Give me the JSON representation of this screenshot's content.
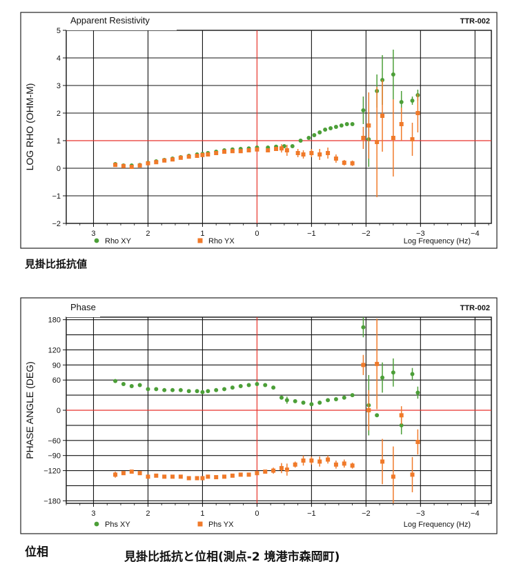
{
  "colors": {
    "xy": "#4c9f38",
    "yx": "#f07a2a",
    "ref": "#e8322a",
    "grid": "#111111"
  },
  "captions": {
    "resistivity": "見掛比抵抗値",
    "phase": "位相",
    "main": "見掛比抵抗と位相(測点-2 境港市森岡町)"
  },
  "chart_data": [
    {
      "type": "scatter",
      "title": "Apparent Resistivity",
      "tag": "TTR-002",
      "ylabel": "LOG RHO (OHM-M)",
      "xlabel": "Log Frequency (Hz)",
      "xlim": [
        3.5,
        -4.3
      ],
      "ylim": [
        -2,
        5
      ],
      "x_ticks": [
        3,
        2,
        1,
        0,
        -1,
        -2,
        -3,
        -4
      ],
      "x_tick_labels": [
        "3",
        "2",
        "1",
        "0",
        "−1",
        "−2",
        "−3",
        "−4"
      ],
      "y_ticks": [
        5,
        4,
        3,
        2,
        1,
        0,
        -1,
        -2
      ],
      "y_tick_labels": [
        "5",
        "4",
        "3",
        "2",
        "1",
        "0",
        "−1",
        "−2"
      ],
      "ref_x": 0,
      "ref_y": 1,
      "grid": true,
      "legend_position": "bottom",
      "series": [
        {
          "name": "Rho XY",
          "marker": "circle",
          "x": [
            2.6,
            2.45,
            2.3,
            2.15,
            2.0,
            1.85,
            1.7,
            1.55,
            1.4,
            1.25,
            1.1,
            1.0,
            0.9,
            0.75,
            0.6,
            0.45,
            0.3,
            0.15,
            0.0,
            -0.2,
            -0.35,
            -0.5,
            -0.65,
            -0.8,
            -0.95,
            -1.05,
            -1.15,
            -1.25,
            -1.35,
            -1.45,
            -1.55,
            -1.65,
            -1.75,
            -1.95,
            -2.05,
            -2.2,
            -2.3,
            -2.5,
            -2.65,
            -2.85,
            -2.95
          ],
          "y": [
            0.15,
            0.1,
            0.1,
            0.12,
            0.2,
            0.25,
            0.3,
            0.35,
            0.4,
            0.45,
            0.5,
            0.52,
            0.55,
            0.6,
            0.65,
            0.68,
            0.7,
            0.72,
            0.75,
            0.75,
            0.78,
            0.8,
            0.8,
            1.0,
            1.1,
            1.2,
            1.3,
            1.4,
            1.45,
            1.5,
            1.55,
            1.6,
            1.6,
            2.1,
            1.05,
            2.8,
            3.2,
            3.4,
            2.4,
            2.45,
            2.65
          ],
          "err": [
            0,
            0,
            0,
            0,
            0,
            0,
            0,
            0,
            0,
            0,
            0,
            0,
            0,
            0,
            0,
            0,
            0,
            0,
            0,
            0,
            0,
            0,
            0,
            0,
            0,
            0,
            0,
            0,
            0,
            0,
            0,
            0,
            0,
            0.5,
            1.0,
            0.6,
            0.9,
            0.9,
            0.4,
            0.15,
            0.2
          ]
        },
        {
          "name": "Rho YX",
          "marker": "square",
          "x": [
            2.6,
            2.45,
            2.3,
            2.15,
            2.0,
            1.85,
            1.7,
            1.55,
            1.4,
            1.25,
            1.1,
            1.0,
            0.9,
            0.75,
            0.6,
            0.45,
            0.3,
            0.15,
            0.0,
            -0.2,
            -0.35,
            -0.45,
            -0.55,
            -0.75,
            -0.85,
            -1.0,
            -1.15,
            -1.3,
            -1.45,
            -1.6,
            -1.75,
            -1.95,
            -2.05,
            -2.2,
            -2.3,
            -2.5,
            -2.65,
            -2.85,
            -2.95
          ],
          "y": [
            0.12,
            0.08,
            0.05,
            0.1,
            0.18,
            0.22,
            0.28,
            0.32,
            0.38,
            0.42,
            0.45,
            0.48,
            0.5,
            0.55,
            0.6,
            0.62,
            0.62,
            0.65,
            0.68,
            0.65,
            0.7,
            0.72,
            0.65,
            0.55,
            0.5,
            0.55,
            0.5,
            0.55,
            0.35,
            0.2,
            0.18,
            1.1,
            1.55,
            0.95,
            1.9,
            1.1,
            1.6,
            1.05,
            2.0
          ],
          "err": [
            0,
            0,
            0,
            0,
            0,
            0,
            0,
            0,
            0,
            0,
            0,
            0,
            0,
            0,
            0,
            0,
            0,
            0,
            0,
            0,
            0,
            0.15,
            0.2,
            0.15,
            0.15,
            0.15,
            0.2,
            0.2,
            0.15,
            0.1,
            0.1,
            0.4,
            1.2,
            2.0,
            1.3,
            1.4,
            0.6,
            0.6,
            0.7
          ]
        }
      ]
    },
    {
      "type": "scatter",
      "title": "Phase",
      "tag": "TTR-002",
      "ylabel": "PHASE ANGLE (DEG)",
      "xlabel": "Log Frequency (Hz)",
      "xlim": [
        3.5,
        -4.3
      ],
      "ylim": [
        -185,
        185
      ],
      "x_ticks": [
        3,
        2,
        1,
        0,
        -1,
        -2,
        -3,
        -4
      ],
      "x_tick_labels": [
        "3",
        "2",
        "1",
        "0",
        "−1",
        "−2",
        "−3",
        "−4"
      ],
      "y_ticks": [
        180,
        120,
        90,
        60,
        0,
        -60,
        -90,
        -120,
        -180
      ],
      "grid_y": [
        180,
        150,
        120,
        90,
        60,
        30,
        0,
        -30,
        -60,
        -90,
        -120,
        -150,
        -180
      ],
      "y_tick_labels": [
        "180",
        "120",
        "90",
        "60",
        "0",
        "−60",
        "−90",
        "−120",
        "−180"
      ],
      "ref_x": 0,
      "ref_y": 0,
      "grid": true,
      "legend_position": "bottom",
      "series": [
        {
          "name": "Phs XY",
          "marker": "circle",
          "x": [
            2.6,
            2.45,
            2.3,
            2.15,
            2.0,
            1.85,
            1.7,
            1.55,
            1.4,
            1.25,
            1.1,
            1.0,
            0.9,
            0.75,
            0.6,
            0.45,
            0.3,
            0.15,
            0.0,
            -0.15,
            -0.3,
            -0.45,
            -0.55,
            -0.7,
            -0.85,
            -1.0,
            -1.15,
            -1.3,
            -1.45,
            -1.6,
            -1.75,
            -1.95,
            -2.05,
            -2.2,
            -2.3,
            -2.5,
            -2.65,
            -2.85,
            -2.95
          ],
          "y": [
            58,
            52,
            48,
            50,
            42,
            42,
            40,
            40,
            40,
            38,
            38,
            36,
            38,
            40,
            42,
            45,
            48,
            50,
            52,
            50,
            45,
            25,
            20,
            18,
            15,
            12,
            15,
            20,
            22,
            25,
            30,
            165,
            10,
            -10,
            65,
            75,
            -30,
            72,
            35
          ],
          "err": [
            0,
            0,
            0,
            0,
            0,
            0,
            0,
            0,
            0,
            0,
            0,
            0,
            0,
            0,
            0,
            0,
            0,
            0,
            0,
            0,
            0,
            0,
            7,
            0,
            0,
            0,
            0,
            0,
            0,
            0,
            0,
            20,
            60,
            0,
            30,
            28,
            18,
            12,
            12
          ]
        },
        {
          "name": "Phs YX",
          "marker": "square",
          "x": [
            2.6,
            2.45,
            2.3,
            2.15,
            2.0,
            1.85,
            1.7,
            1.55,
            1.4,
            1.25,
            1.1,
            1.0,
            0.9,
            0.75,
            0.6,
            0.45,
            0.3,
            0.15,
            0.0,
            -0.15,
            -0.3,
            -0.45,
            -0.55,
            -0.7,
            -0.85,
            -1.0,
            -1.15,
            -1.3,
            -1.45,
            -1.6,
            -1.75,
            -1.95,
            -2.05,
            -2.2,
            -2.3,
            -2.5,
            -2.65,
            -2.85,
            -2.95
          ],
          "y": [
            -128,
            -125,
            -122,
            -125,
            -132,
            -130,
            -132,
            -132,
            -132,
            -135,
            -135,
            -135,
            -132,
            -133,
            -132,
            -130,
            -128,
            -128,
            -125,
            -122,
            -120,
            -115,
            -118,
            -108,
            -100,
            -100,
            -102,
            -98,
            -108,
            -106,
            -110,
            90,
            0,
            92,
            -102,
            -132,
            -10,
            -128,
            -63
          ],
          "err": [
            6,
            0,
            0,
            0,
            0,
            0,
            0,
            0,
            0,
            0,
            0,
            4,
            0,
            0,
            0,
            0,
            0,
            0,
            0,
            0,
            6,
            10,
            12,
            6,
            10,
            8,
            10,
            8,
            8,
            8,
            6,
            20,
            40,
            90,
            45,
            60,
            18,
            35,
            25
          ]
        }
      ]
    }
  ]
}
